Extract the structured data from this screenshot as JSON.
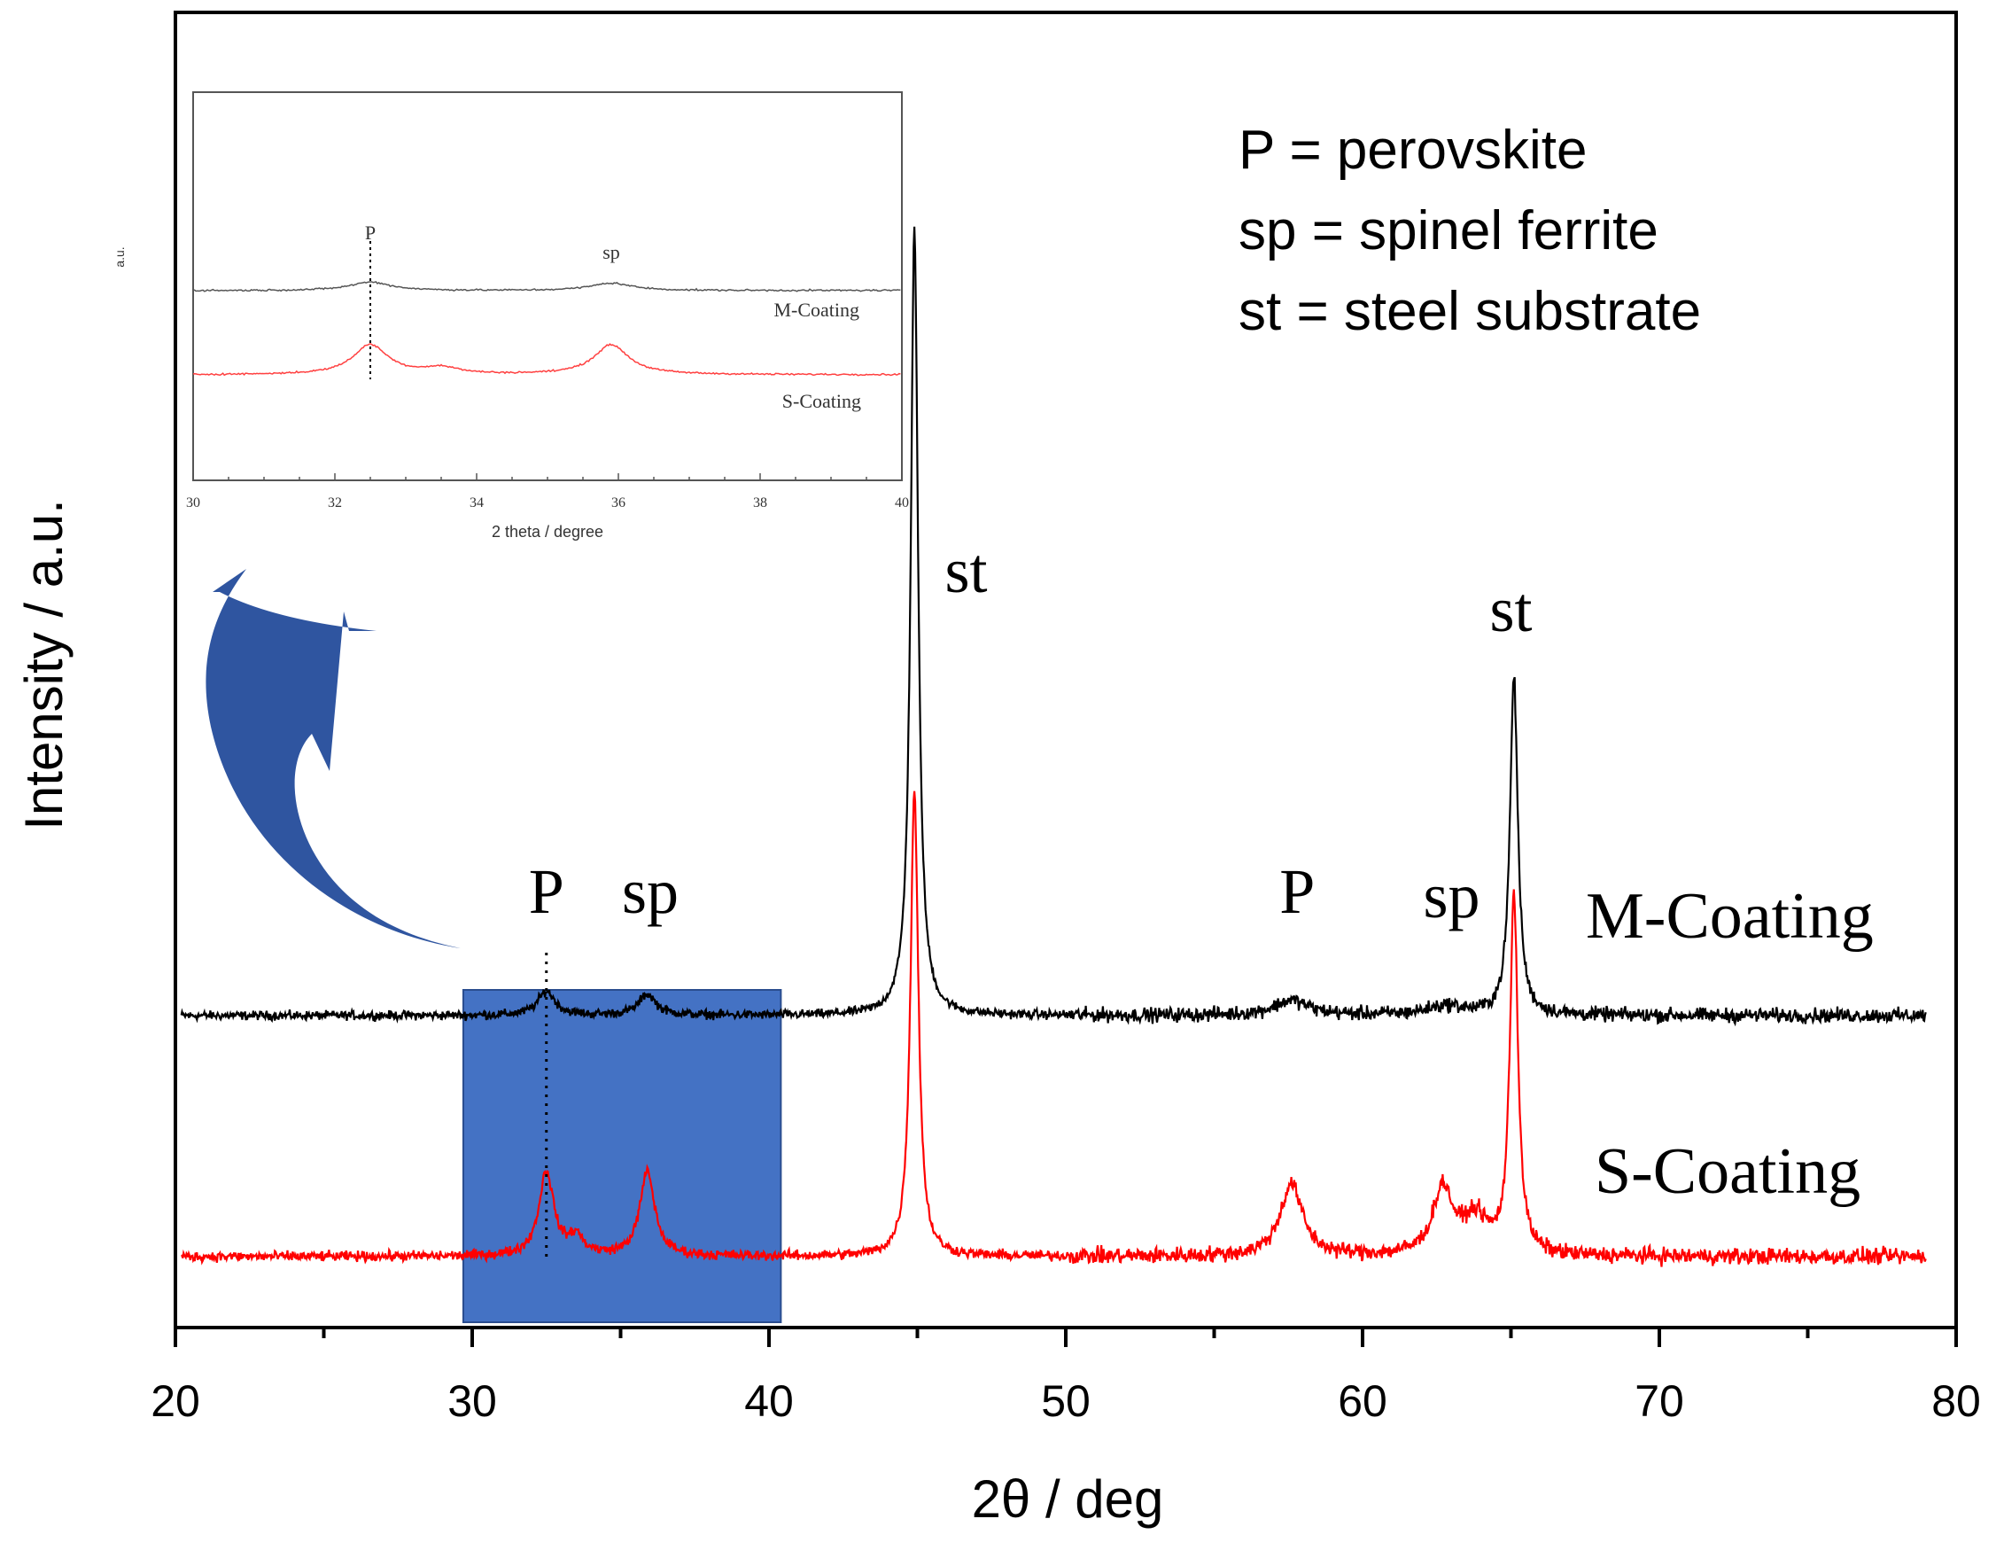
{
  "chart_data": {
    "type": "line",
    "xlabel": "2θ / deg",
    "ylabel": "Intensity / a.u.",
    "xlim": [
      20,
      80
    ],
    "x_ticks": [
      "20",
      "30",
      "40",
      "50",
      "60",
      "70",
      "80"
    ],
    "series": [
      {
        "name": "M-Coating",
        "color": "#000000",
        "x_range": [
          20.2,
          79.0
        ],
        "baseline": 0.0,
        "noise": 0.022,
        "peaks": [
          {
            "x": 32.5,
            "height": 0.08,
            "width": 0.35
          },
          {
            "x": 35.9,
            "height": 0.07,
            "width": 0.35
          },
          {
            "x": 44.9,
            "height": 2.61,
            "width": 0.15
          },
          {
            "x": 57.6,
            "height": 0.05,
            "width": 0.7
          },
          {
            "x": 62.8,
            "height": 0.03,
            "width": 0.8
          },
          {
            "x": 65.1,
            "height": 1.12,
            "width": 0.16
          }
        ]
      },
      {
        "name": "S-Coating",
        "color": "#ff0000",
        "x_range": [
          20.2,
          79.0
        ],
        "baseline": 0.0,
        "noise": 0.025,
        "peaks": [
          {
            "x": 32.5,
            "height": 0.28,
            "width": 0.3
          },
          {
            "x": 33.5,
            "height": 0.06,
            "width": 0.3
          },
          {
            "x": 35.9,
            "height": 0.28,
            "width": 0.3
          },
          {
            "x": 44.9,
            "height": 1.55,
            "width": 0.16
          },
          {
            "x": 57.6,
            "height": 0.24,
            "width": 0.45
          },
          {
            "x": 62.7,
            "height": 0.22,
            "width": 0.4
          },
          {
            "x": 63.8,
            "height": 0.12,
            "width": 0.5
          },
          {
            "x": 65.1,
            "height": 1.2,
            "width": 0.16
          }
        ]
      }
    ],
    "peak_labels": [
      {
        "text": "P",
        "x": 32.5
      },
      {
        "text": "sp",
        "x": 36.0
      },
      {
        "text": "st",
        "x": 45.0
      },
      {
        "text": "P",
        "x": 57.8
      },
      {
        "text": "sp",
        "x": 63.0
      },
      {
        "text": "st",
        "x": 65.0
      }
    ],
    "legend_lines": [
      "P  = perovskite",
      "sp = spinel ferrite",
      "st  = steel substrate"
    ],
    "highlight_region": {
      "x_range": [
        29.7,
        40.4
      ],
      "color": "#4472c4"
    },
    "arrow_color": "#2f55a0",
    "inset": {
      "xlabel": "2 theta / degree",
      "ylabel": "a.u.",
      "xlim": [
        30,
        40
      ],
      "x_ticks": [
        "30",
        "32",
        "34",
        "36",
        "38",
        "40"
      ],
      "peak_labels": [
        {
          "text": "P",
          "x": 32.5
        },
        {
          "text": "sp",
          "x": 35.9
        }
      ],
      "series_labels": [
        "M-Coating",
        "S-Coating"
      ]
    }
  }
}
